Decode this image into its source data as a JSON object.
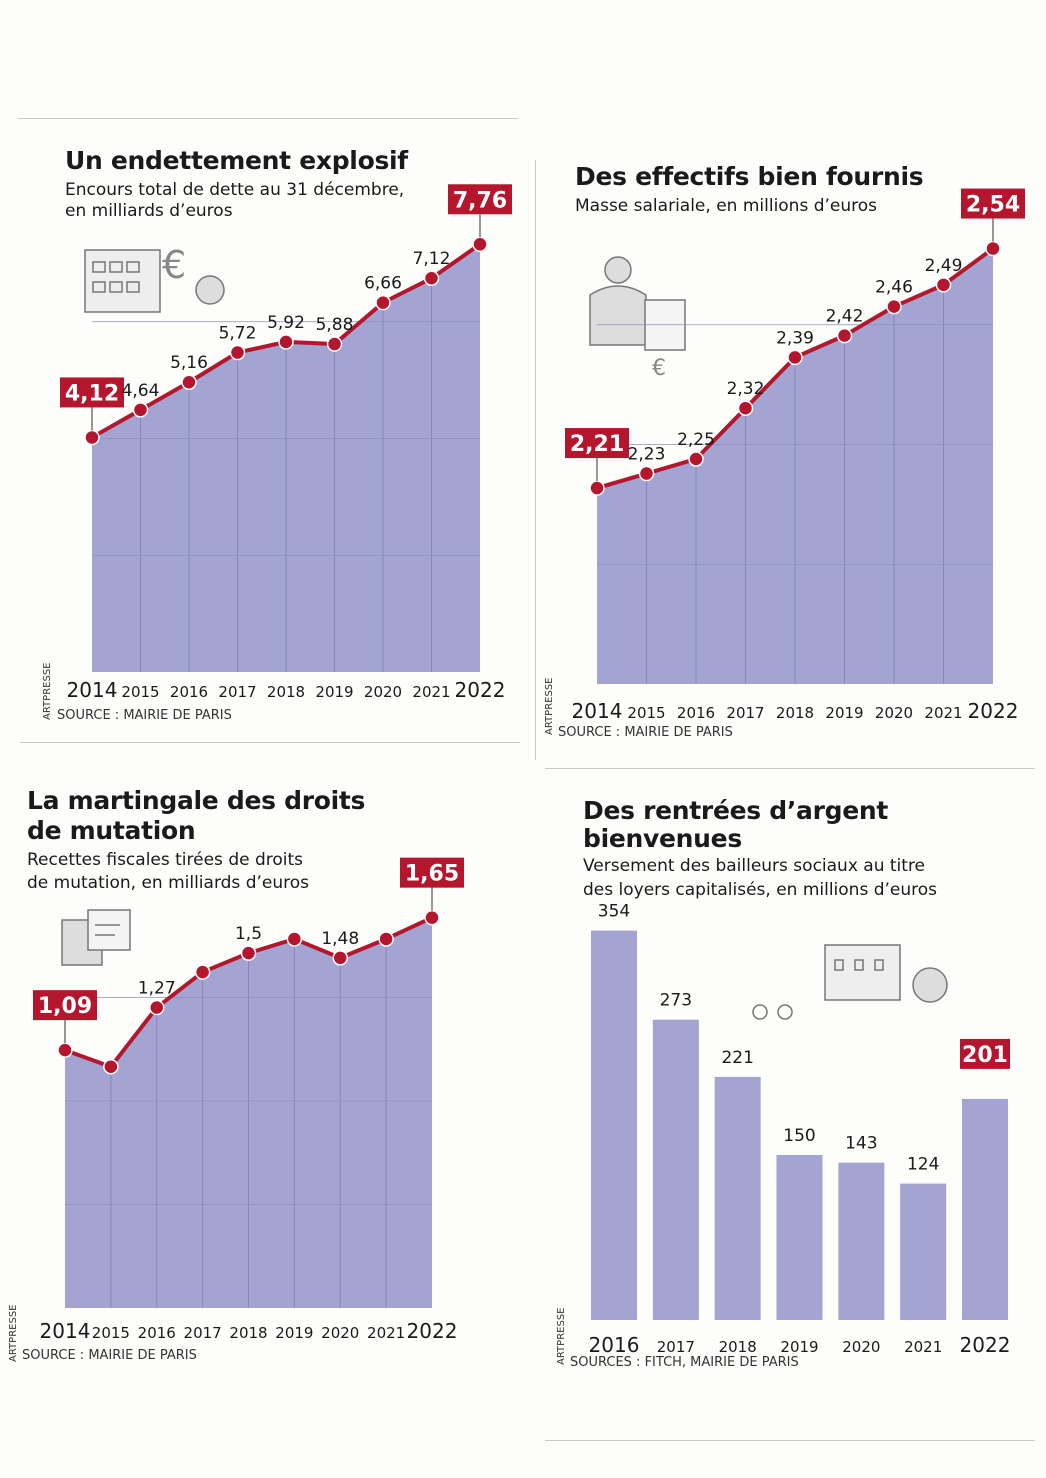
{
  "panels": [
    {
      "title": "Un endettement explosif",
      "subtitle": [
        "Encours total de dette au 31 décembre,",
        "en milliards d’euros"
      ],
      "source": "SOURCE : MAIRIE DE PARIS",
      "credit": "ARTPRESSE"
    },
    {
      "title": "Des effectifs bien fournis",
      "subtitle": [
        "Masse salariale, en millions d’euros"
      ],
      "source": "SOURCE : MAIRIE DE PARIS",
      "credit": "ARTPRESSE"
    },
    {
      "title": "La martingale des droits",
      "title2": "de mutation",
      "subtitle": [
        "Recettes fiscales tirées de droits",
        "de mutation, en milliards d’euros"
      ],
      "source": "SOURCE : MAIRIE DE PARIS",
      "credit": "ARTPRESSE"
    },
    {
      "title": "Des rentrées d’argent",
      "title2": "bienvenues",
      "subtitle": [
        "Versement des bailleurs sociaux au titre",
        "des loyers capitalisés, en millions d’euros"
      ],
      "source": "SOURCES : FITCH, MAIRIE DE PARIS",
      "credit": "ARTPRESSE"
    }
  ],
  "colors": {
    "fill": "#a3a4d2",
    "line": "#b3162d",
    "highlight": "#b3162d"
  },
  "chart_data": [
    {
      "type": "area",
      "title": "Un endettement explosif",
      "ylabel": "milliards d’euros",
      "x": [
        "2014",
        "2015",
        "2016",
        "2017",
        "2018",
        "2019",
        "2020",
        "2021",
        "2022"
      ],
      "values": [
        4.12,
        4.64,
        5.16,
        5.72,
        5.92,
        5.88,
        6.66,
        7.12,
        7.76
      ],
      "labels": [
        "4,12",
        "4,64",
        "5,16",
        "5,72",
        "5,92",
        "5,88",
        "6,66",
        "7,12",
        "7,76"
      ],
      "highlighted": [
        0,
        8
      ],
      "ylim": [
        -0.3,
        8.5
      ],
      "grid": true
    },
    {
      "type": "area",
      "title": "Des effectifs bien fournis",
      "ylabel": "millions d’euros",
      "x": [
        "2014",
        "2015",
        "2016",
        "2017",
        "2018",
        "2019",
        "2020",
        "2021",
        "2022"
      ],
      "values": [
        2.21,
        2.23,
        2.25,
        2.32,
        2.39,
        2.42,
        2.46,
        2.49,
        2.54
      ],
      "labels": [
        "2,21",
        "2,23",
        "2,25",
        "2,32",
        "2,39",
        "2,42",
        "2,46",
        "2,49",
        "2,54"
      ],
      "highlighted": [
        0,
        8
      ],
      "ylim": [
        1.94,
        2.6
      ],
      "grid": true
    },
    {
      "type": "area",
      "title": "La martingale des droits de mutation",
      "ylabel": "milliards d’euros",
      "x": [
        "2014",
        "2015",
        "2016",
        "2017",
        "2018",
        "2019",
        "2020",
        "2021",
        "2022"
      ],
      "values": [
        1.09,
        1.02,
        1.27,
        1.42,
        1.5,
        1.56,
        1.48,
        1.56,
        1.65
      ],
      "labels": [
        "1,09",
        null,
        "1,27",
        null,
        "1,5",
        null,
        "1,48",
        null,
        "1,65"
      ],
      "highlighted": [
        0,
        8
      ],
      "ylim": [
        0,
        1.75
      ],
      "grid": true
    },
    {
      "type": "bar",
      "title": "Des rentrées d’argent bienvenues",
      "ylabel": "millions d’euros",
      "x": [
        "2016",
        "2017",
        "2018",
        "2019",
        "2020",
        "2021",
        "2022"
      ],
      "values": [
        354,
        273,
        221,
        150,
        143,
        124,
        201
      ],
      "labels": [
        "354",
        "273",
        "221",
        "150",
        "143",
        "124",
        "201"
      ],
      "highlighted": [
        6
      ],
      "ylim": [
        0,
        380
      ],
      "grid": false
    }
  ]
}
